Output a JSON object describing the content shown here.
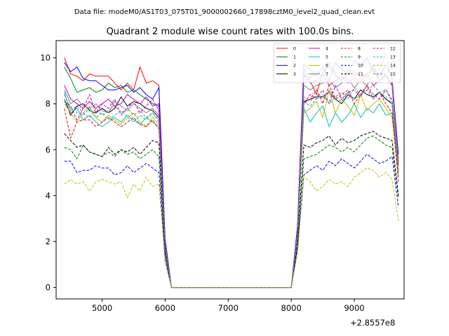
{
  "figure": {
    "suptitle": "Data file: modeM0/AS1T03_075T01_9000002660_17898cztM0_level2_quad_clean.evt",
    "title": "Quadrant 2 module wise count rates with 100.0s bins.",
    "offset_label": "+2.8557e8"
  },
  "chart_data": {
    "type": "line",
    "title": "Quadrant 2 module wise count rates with 100.0s bins.",
    "xlim": [
      4270,
      9790
    ],
    "ylim": [
      -0.5,
      10.75
    ],
    "x_ticks": [
      5000,
      6000,
      7000,
      8000,
      9000
    ],
    "y_ticks": [
      0,
      2,
      4,
      6,
      8,
      10
    ],
    "x_offset": "+2.8557e8",
    "legend_position": "top-right",
    "legend_columns": 4,
    "x": [
      4400,
      4500,
      4600,
      4700,
      4800,
      4900,
      5000,
      5100,
      5200,
      5300,
      5400,
      5500,
      5600,
      5700,
      5800,
      5900,
      6000,
      6100,
      6200,
      6300,
      6400,
      6500,
      6600,
      6700,
      6800,
      6900,
      7000,
      7100,
      7200,
      7300,
      7400,
      7500,
      7600,
      7700,
      7800,
      7900,
      8000,
      8100,
      8200,
      8300,
      8400,
      8500,
      8600,
      8700,
      8800,
      8900,
      9000,
      9100,
      9200,
      9300,
      9400,
      9500,
      9600,
      9700
    ],
    "series": [
      {
        "name": "0",
        "color": "#ff0000",
        "dash": false,
        "values": [
          10.0,
          9.3,
          9.2,
          9.0,
          9.3,
          9.2,
          9.2,
          9.2,
          8.9,
          8.6,
          8.9,
          8.6,
          9.6,
          8.9,
          9.0,
          8.8,
          2.0,
          0.0,
          0.0,
          0.0,
          0.0,
          0.0,
          0.0,
          0.0,
          0.0,
          0.0,
          0.0,
          0.0,
          0.0,
          0.0,
          0.0,
          0.0,
          0.0,
          0.0,
          0.0,
          0.0,
          0.0,
          2.6,
          9.3,
          9.0,
          8.4,
          9.4,
          9.6,
          9.2,
          9.0,
          9.3,
          9.4,
          9.1,
          9.3,
          9.5,
          9.0,
          9.2,
          8.9,
          5.6
        ]
      },
      {
        "name": "1",
        "color": "#008000",
        "dash": false,
        "values": [
          9.6,
          9.1,
          8.5,
          8.6,
          8.7,
          8.5,
          8.6,
          8.9,
          8.7,
          8.8,
          8.5,
          8.6,
          8.4,
          8.2,
          8.0,
          7.9,
          1.9,
          0.0,
          0.0,
          0.0,
          0.0,
          0.0,
          0.0,
          0.0,
          0.0,
          0.0,
          0.0,
          0.0,
          0.0,
          0.0,
          0.0,
          0.0,
          0.0,
          0.0,
          0.0,
          0.0,
          0.0,
          2.5,
          9.5,
          9.1,
          9.4,
          9.2,
          9.8,
          9.3,
          9.0,
          9.5,
          9.2,
          9.4,
          9.1,
          9.7,
          9.0,
          9.3,
          8.8,
          5.4
        ]
      },
      {
        "name": "2",
        "color": "#0000ff",
        "dash": false,
        "values": [
          9.8,
          9.4,
          9.6,
          9.1,
          9.0,
          9.0,
          8.8,
          8.6,
          8.6,
          8.7,
          8.8,
          8.5,
          8.7,
          8.4,
          8.2,
          8.7,
          2.1,
          0.0,
          0.0,
          0.0,
          0.0,
          0.0,
          0.0,
          0.0,
          0.0,
          0.0,
          0.0,
          0.0,
          0.0,
          0.0,
          0.0,
          0.0,
          0.0,
          0.0,
          0.0,
          0.0,
          0.0,
          2.7,
          9.7,
          9.5,
          9.2,
          9.6,
          9.0,
          9.8,
          9.5,
          9.3,
          9.9,
          9.6,
          10.0,
          9.4,
          9.2,
          9.7,
          9.1,
          5.8
        ]
      },
      {
        "name": "3",
        "color": "#000000",
        "dash": false,
        "values": [
          8.2,
          7.5,
          7.9,
          8.0,
          7.7,
          7.6,
          7.8,
          7.6,
          7.8,
          8.3,
          7.9,
          8.1,
          8.0,
          7.8,
          7.7,
          7.4,
          1.8,
          0.0,
          0.0,
          0.0,
          0.0,
          0.0,
          0.0,
          0.0,
          0.0,
          0.0,
          0.0,
          0.0,
          0.0,
          0.0,
          0.0,
          0.0,
          0.0,
          0.0,
          0.0,
          0.0,
          0.0,
          2.3,
          8.1,
          8.2,
          8.3,
          8.3,
          8.5,
          8.2,
          8.0,
          8.4,
          8.2,
          8.6,
          8.4,
          8.3,
          8.5,
          8.2,
          8.0,
          5.0
        ]
      },
      {
        "name": "4",
        "color": "#bf00bf",
        "dash": false,
        "values": [
          8.8,
          8.2,
          8.0,
          7.8,
          8.1,
          7.8,
          8.0,
          8.2,
          7.9,
          8.0,
          8.4,
          8.2,
          8.0,
          8.3,
          7.9,
          8.0,
          1.9,
          0.0,
          0.0,
          0.0,
          0.0,
          0.0,
          0.0,
          0.0,
          0.0,
          0.0,
          0.0,
          0.0,
          0.0,
          0.0,
          0.0,
          0.0,
          0.0,
          0.0,
          0.0,
          0.0,
          0.0,
          2.5,
          9.2,
          8.9,
          9.0,
          9.3,
          8.8,
          9.0,
          9.2,
          8.9,
          9.1,
          9.0,
          9.3,
          8.8,
          9.0,
          9.2,
          8.8,
          5.3
        ]
      },
      {
        "name": "5",
        "color": "#00bfbf",
        "dash": false,
        "values": [
          8.5,
          7.6,
          7.8,
          7.3,
          7.5,
          7.2,
          7.0,
          7.2,
          7.4,
          7.2,
          7.5,
          7.3,
          7.1,
          7.4,
          7.2,
          7.0,
          1.7,
          0.0,
          0.0,
          0.0,
          0.0,
          0.0,
          0.0,
          0.0,
          0.0,
          0.0,
          0.0,
          0.0,
          0.0,
          0.0,
          0.0,
          0.0,
          0.0,
          0.0,
          0.0,
          0.0,
          0.0,
          2.2,
          7.8,
          7.2,
          7.6,
          7.9,
          7.0,
          7.6,
          7.2,
          7.5,
          8.0,
          7.4,
          7.8,
          7.6,
          8.0,
          7.5,
          7.6,
          4.8
        ]
      },
      {
        "name": "6",
        "color": "#bfbf00",
        "dash": false,
        "values": [
          8.0,
          7.6,
          7.2,
          7.6,
          7.9,
          7.4,
          7.2,
          7.5,
          7.3,
          7.1,
          7.4,
          7.6,
          7.2,
          7.0,
          7.4,
          7.1,
          1.7,
          0.0,
          0.0,
          0.0,
          0.0,
          0.0,
          0.0,
          0.0,
          0.0,
          0.0,
          0.0,
          0.0,
          0.0,
          0.0,
          0.0,
          0.0,
          0.0,
          0.0,
          0.0,
          0.0,
          0.0,
          2.2,
          7.6,
          7.8,
          8.1,
          7.4,
          8.6,
          7.6,
          8.2,
          7.9,
          7.5,
          8.4,
          7.7,
          8.0,
          8.2,
          7.8,
          7.4,
          4.9
        ]
      },
      {
        "name": "7",
        "color": "#808080",
        "dash": false,
        "values": [
          8.6,
          8.0,
          8.2,
          7.9,
          7.8,
          8.0,
          7.7,
          7.6,
          8.1,
          7.9,
          7.7,
          8.0,
          7.8,
          7.6,
          7.8,
          7.5,
          1.8,
          0.0,
          0.0,
          0.0,
          0.0,
          0.0,
          0.0,
          0.0,
          0.0,
          0.0,
          0.0,
          0.0,
          0.0,
          0.0,
          0.0,
          0.0,
          0.0,
          0.0,
          0.0,
          0.0,
          0.0,
          2.4,
          8.8,
          8.6,
          8.8,
          8.9,
          9.0,
          8.7,
          8.9,
          9.1,
          8.7,
          9.0,
          8.8,
          9.3,
          9.5,
          10.2,
          9.0,
          5.5
        ]
      },
      {
        "name": "8",
        "color": "#ff0000",
        "dash": true,
        "values": [
          7.8,
          6.5,
          7.2,
          7.3,
          7.3,
          7.0,
          7.2,
          7.4,
          7.2,
          7.0,
          7.2,
          7.4,
          7.1,
          7.0,
          7.3,
          6.9,
          1.6,
          0.0,
          0.0,
          0.0,
          0.0,
          0.0,
          0.0,
          0.0,
          0.0,
          0.0,
          0.0,
          0.0,
          0.0,
          0.0,
          0.0,
          0.0,
          0.0,
          0.0,
          0.0,
          0.0,
          0.0,
          2.2,
          8.0,
          8.2,
          8.6,
          8.0,
          8.8,
          8.2,
          8.4,
          8.6,
          8.0,
          8.4,
          8.8,
          8.2,
          8.5,
          8.0,
          7.6,
          4.6
        ]
      },
      {
        "name": "9",
        "color": "#008000",
        "dash": true,
        "values": [
          6.1,
          6.0,
          5.6,
          6.2,
          5.9,
          5.8,
          5.7,
          5.9,
          5.7,
          6.0,
          5.8,
          5.9,
          5.6,
          5.8,
          6.0,
          5.7,
          1.4,
          0.0,
          0.0,
          0.0,
          0.0,
          0.0,
          0.0,
          0.0,
          0.0,
          0.0,
          0.0,
          0.0,
          0.0,
          0.0,
          0.0,
          0.0,
          0.0,
          0.0,
          0.0,
          0.0,
          0.0,
          1.8,
          5.6,
          5.7,
          5.8,
          6.0,
          6.2,
          6.1,
          5.9,
          6.1,
          5.9,
          6.2,
          6.5,
          6.6,
          6.4,
          6.2,
          6.1,
          3.9
        ]
      },
      {
        "name": "10",
        "color": "#0000ff",
        "dash": true,
        "values": [
          5.5,
          5.5,
          5.0,
          5.1,
          5.1,
          5.3,
          5.2,
          5.2,
          4.9,
          5.0,
          5.3,
          5.0,
          5.2,
          5.4,
          5.2,
          5.0,
          1.2,
          0.0,
          0.0,
          0.0,
          0.0,
          0.0,
          0.0,
          0.0,
          0.0,
          0.0,
          0.0,
          0.0,
          0.0,
          0.0,
          0.0,
          0.0,
          0.0,
          0.0,
          0.0,
          0.0,
          0.0,
          1.7,
          4.9,
          5.1,
          5.3,
          5.1,
          5.5,
          5.3,
          5.6,
          5.4,
          5.2,
          5.5,
          5.8,
          5.6,
          5.4,
          5.5,
          5.7,
          3.5
        ]
      },
      {
        "name": "11",
        "color": "#000000",
        "dash": true,
        "values": [
          6.7,
          6.4,
          6.1,
          6.2,
          5.9,
          5.8,
          5.7,
          6.1,
          5.8,
          6.0,
          5.9,
          6.1,
          5.8,
          6.1,
          6.4,
          6.3,
          1.5,
          0.0,
          0.0,
          0.0,
          0.0,
          0.0,
          0.0,
          0.0,
          0.0,
          0.0,
          0.0,
          0.0,
          0.0,
          0.0,
          0.0,
          0.0,
          0.0,
          0.0,
          0.0,
          0.0,
          0.0,
          1.9,
          6.2,
          6.1,
          6.3,
          6.4,
          6.6,
          6.2,
          6.5,
          6.3,
          6.4,
          6.6,
          6.7,
          6.8,
          6.6,
          6.5,
          6.4,
          4.0
        ]
      },
      {
        "name": "12",
        "color": "#bf00bf",
        "dash": true,
        "values": [
          8.1,
          7.9,
          7.3,
          7.8,
          8.4,
          7.6,
          8.0,
          7.8,
          8.2,
          7.5,
          7.8,
          8.1,
          7.6,
          7.9,
          8.2,
          7.7,
          1.8,
          0.0,
          0.0,
          0.0,
          0.0,
          0.0,
          0.0,
          0.0,
          0.0,
          0.0,
          0.0,
          0.0,
          0.0,
          0.0,
          0.0,
          0.0,
          0.0,
          0.0,
          0.0,
          0.0,
          0.0,
          2.3,
          8.0,
          8.4,
          8.2,
          8.6,
          8.0,
          8.8,
          8.2,
          8.5,
          8.6,
          8.3,
          8.8,
          8.4,
          8.2,
          8.6,
          8.1,
          5.0
        ]
      },
      {
        "name": "13",
        "color": "#00bfbf",
        "dash": true,
        "values": [
          8.4,
          7.8,
          7.6,
          7.5,
          7.8,
          7.4,
          7.6,
          7.3,
          7.5,
          7.7,
          7.4,
          7.2,
          7.5,
          7.3,
          7.6,
          7.2,
          1.7,
          0.0,
          0.0,
          0.0,
          0.0,
          0.0,
          0.0,
          0.0,
          0.0,
          0.0,
          0.0,
          0.0,
          0.0,
          0.0,
          0.0,
          0.0,
          0.0,
          0.0,
          0.0,
          0.0,
          0.0,
          2.2,
          8.1,
          7.9,
          8.2,
          8.4,
          8.0,
          8.3,
          8.1,
          8.5,
          8.2,
          8.4,
          8.6,
          8.2,
          8.5,
          8.3,
          8.0,
          5.0
        ]
      },
      {
        "name": "14",
        "color": "#bfbf00",
        "dash": true,
        "values": [
          4.5,
          4.7,
          4.5,
          4.6,
          4.2,
          4.6,
          4.7,
          4.6,
          4.5,
          4.6,
          3.9,
          4.5,
          4.2,
          4.8,
          4.4,
          4.5,
          1.1,
          0.0,
          0.0,
          0.0,
          0.0,
          0.0,
          0.0,
          0.0,
          0.0,
          0.0,
          0.0,
          0.0,
          0.0,
          0.0,
          0.0,
          0.0,
          0.0,
          0.0,
          0.0,
          0.0,
          0.0,
          1.5,
          4.8,
          4.6,
          4.2,
          4.4,
          4.7,
          4.5,
          4.6,
          4.4,
          4.8,
          5.0,
          5.2,
          5.1,
          4.8,
          5.0,
          4.7,
          2.9
        ]
      },
      {
        "name": "15",
        "color": "#808080",
        "dash": true,
        "values": [
          8.2,
          7.7,
          7.9,
          7.6,
          7.4,
          7.8,
          7.5,
          7.7,
          7.9,
          7.6,
          7.8,
          7.5,
          7.7,
          7.4,
          7.6,
          7.3,
          1.8,
          0.0,
          0.0,
          0.0,
          0.0,
          0.0,
          0.0,
          0.0,
          0.0,
          0.0,
          0.0,
          0.0,
          0.0,
          0.0,
          0.0,
          0.0,
          0.0,
          0.0,
          0.0,
          0.0,
          0.0,
          2.3,
          8.3,
          8.1,
          8.4,
          8.2,
          8.6,
          8.3,
          8.5,
          8.2,
          8.7,
          8.4,
          8.6,
          8.8,
          8.5,
          8.6,
          8.2,
          5.1
        ]
      }
    ]
  }
}
